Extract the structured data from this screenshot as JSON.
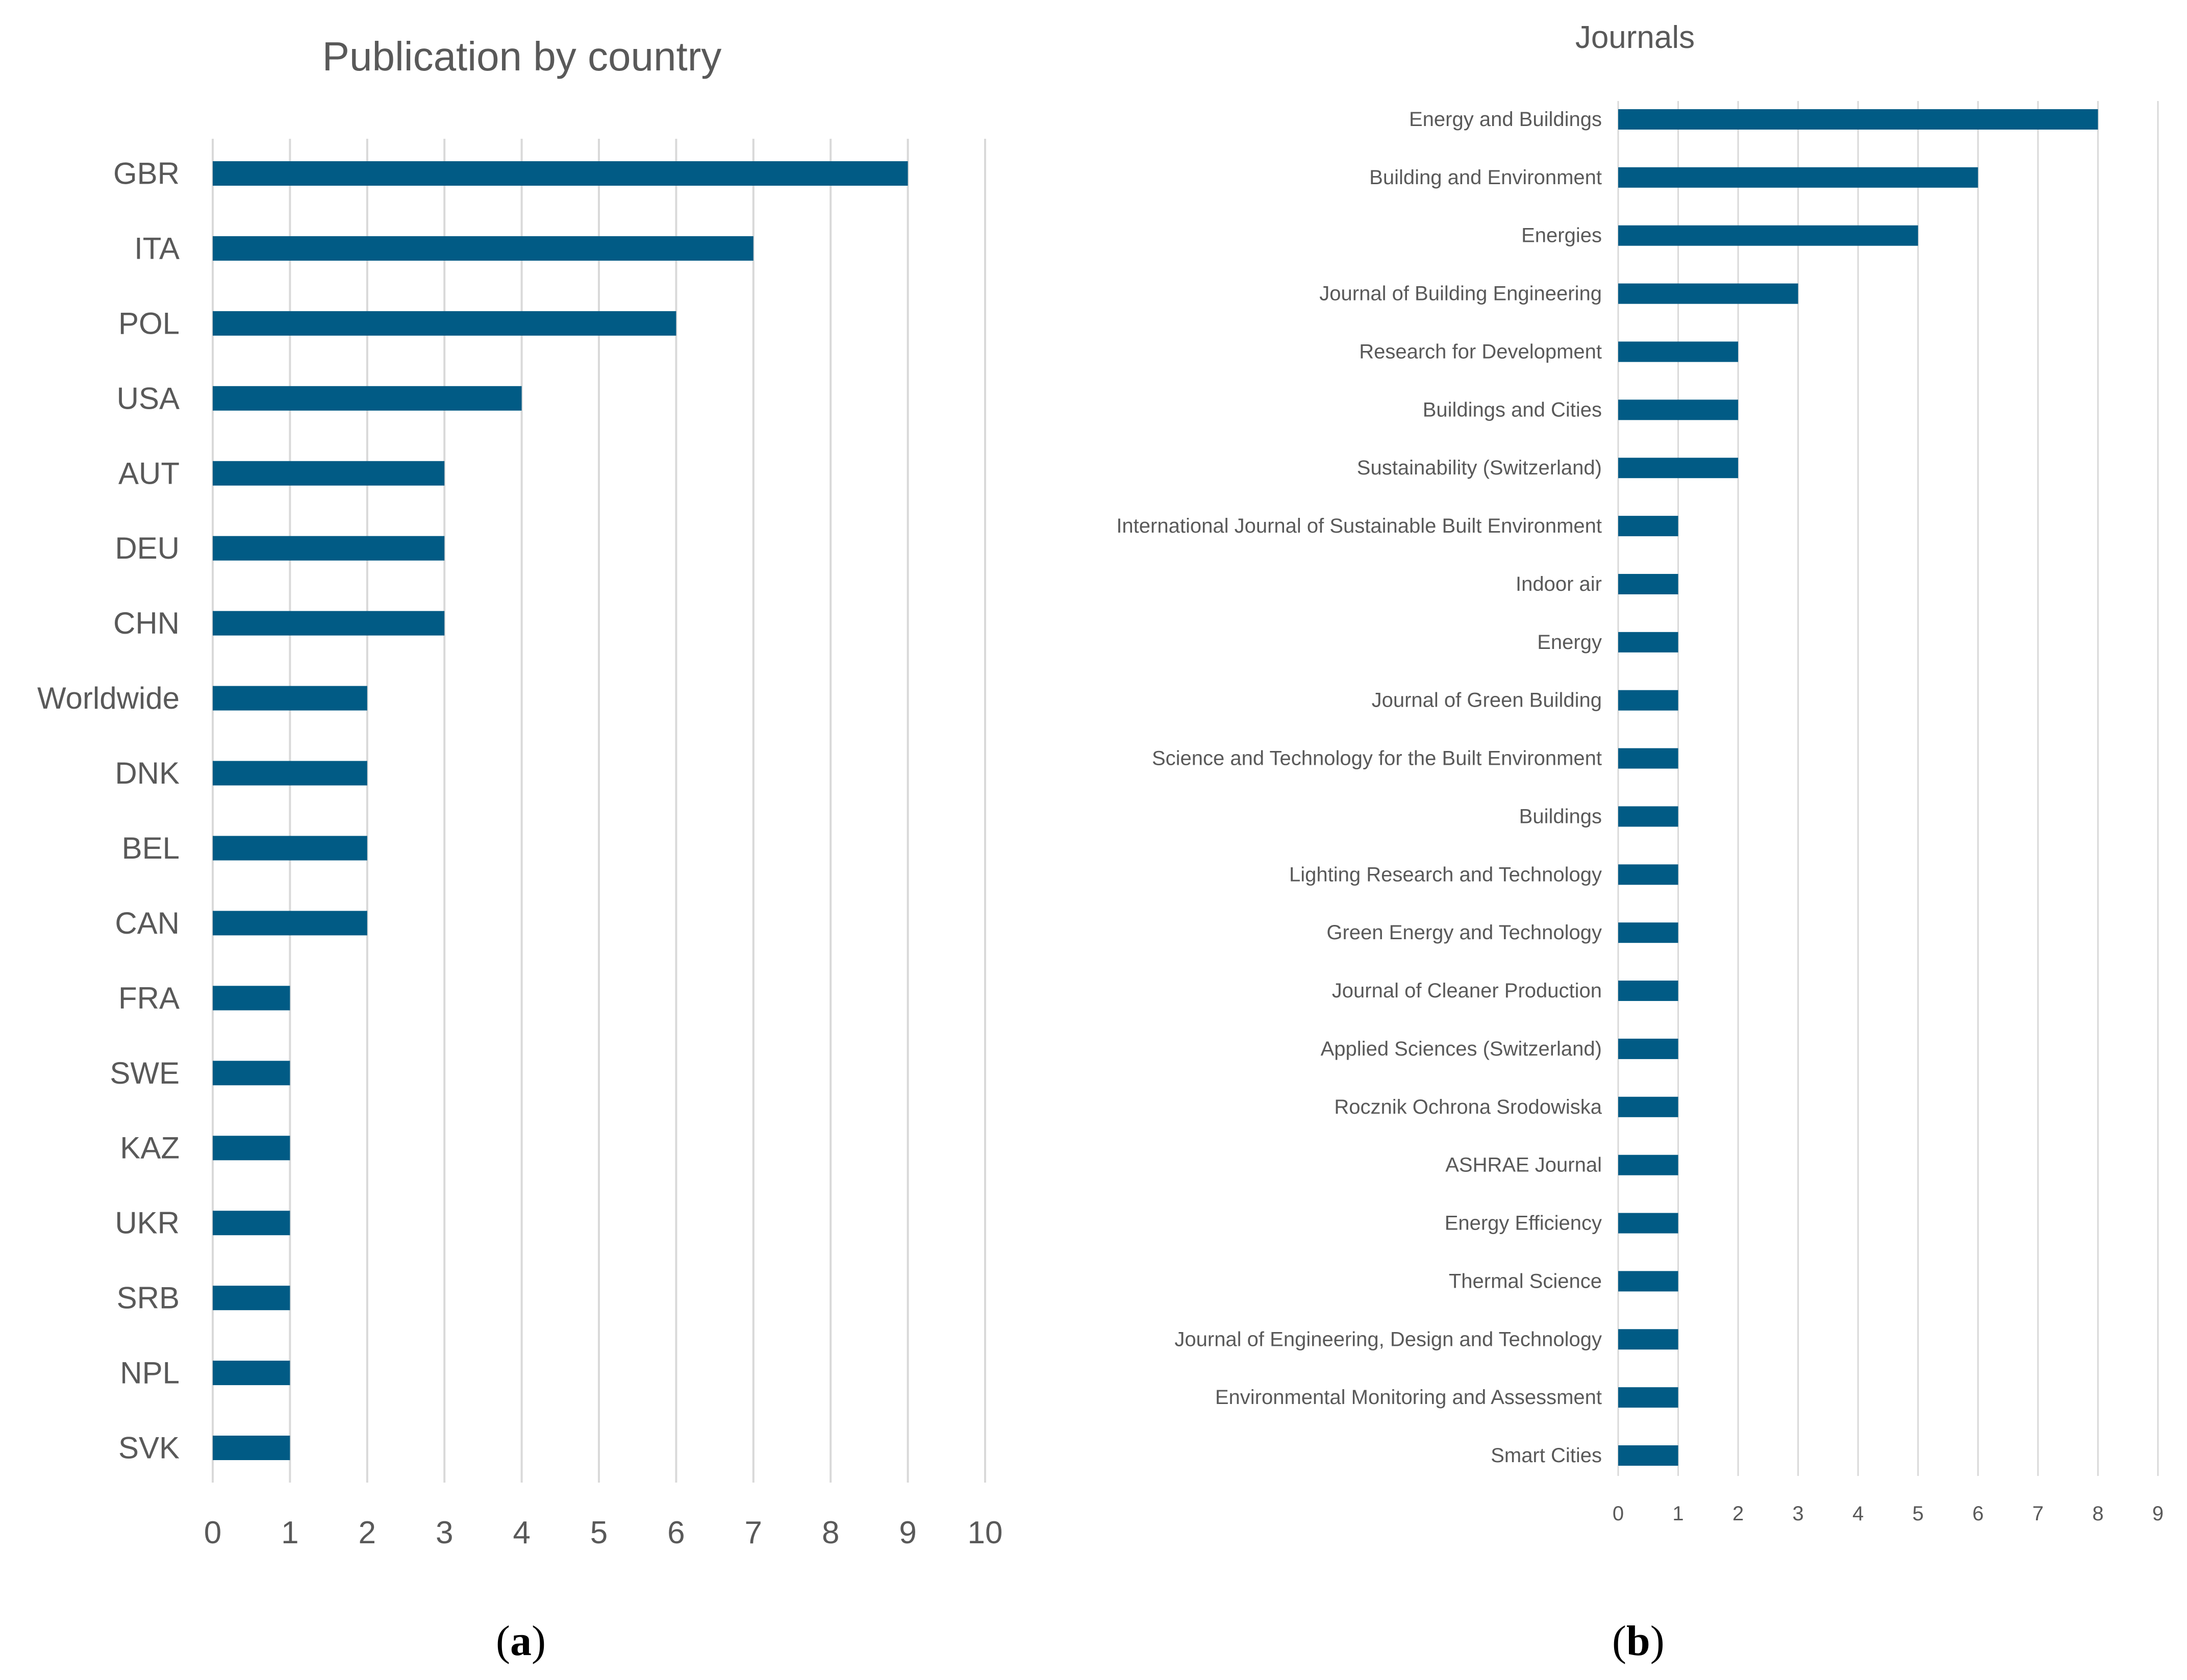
{
  "colors": {
    "bar": "#015B85",
    "grid": "#D9D9D9",
    "text": "#595959"
  },
  "chart_data": [
    {
      "type": "bar",
      "orientation": "horizontal",
      "title": "Publication by country",
      "xlabel": "",
      "ylabel": "",
      "xlim": [
        0,
        10
      ],
      "ticks": [
        0,
        1,
        2,
        3,
        4,
        5,
        6,
        7,
        8,
        9,
        10
      ],
      "grid": true,
      "categories": [
        "GBR",
        "ITA",
        "POL",
        "USA",
        "AUT",
        "DEU",
        "CHN",
        "Worldwide",
        "DNK",
        "BEL",
        "CAN",
        "FRA",
        "SWE",
        "KAZ",
        "UKR",
        "SRB",
        "NPL",
        "SVK"
      ],
      "values": [
        9,
        7,
        6,
        4,
        3,
        3,
        3,
        2,
        2,
        2,
        2,
        1,
        1,
        1,
        1,
        1,
        1,
        1
      ]
    },
    {
      "type": "bar",
      "orientation": "horizontal",
      "title": "Journals",
      "xlabel": "",
      "ylabel": "",
      "xlim": [
        0,
        9
      ],
      "ticks": [
        0,
        1,
        2,
        3,
        4,
        5,
        6,
        7,
        8,
        9
      ],
      "grid": true,
      "categories": [
        "Energy and Buildings",
        "Building and Environment",
        "Energies",
        "Journal of Building Engineering",
        "Research for Development",
        "Buildings and Cities",
        "Sustainability (Switzerland)",
        "International Journal of Sustainable Built Environment",
        "Indoor air",
        "Energy",
        "Journal of Green Building",
        "Science and Technology for the Built Environment",
        "Buildings",
        "Lighting Research and Technology",
        "Green Energy and Technology",
        "Journal of Cleaner Production",
        "Applied Sciences (Switzerland)",
        "Rocznik Ochrona Srodowiska",
        "ASHRAE Journal",
        "Energy Efficiency",
        "Thermal Science",
        "Journal of Engineering, Design and Technology",
        "Environmental Monitoring and Assessment",
        "Smart Cities"
      ],
      "values": [
        8,
        6,
        5,
        3,
        2,
        2,
        2,
        1,
        1,
        1,
        1,
        1,
        1,
        1,
        1,
        1,
        1,
        1,
        1,
        1,
        1,
        1,
        1,
        1
      ]
    }
  ],
  "panel_labels": {
    "a": {
      "open": "(",
      "letter": "a",
      "close": ")"
    },
    "b": {
      "open": "(",
      "letter": "b",
      "close": ")"
    }
  }
}
